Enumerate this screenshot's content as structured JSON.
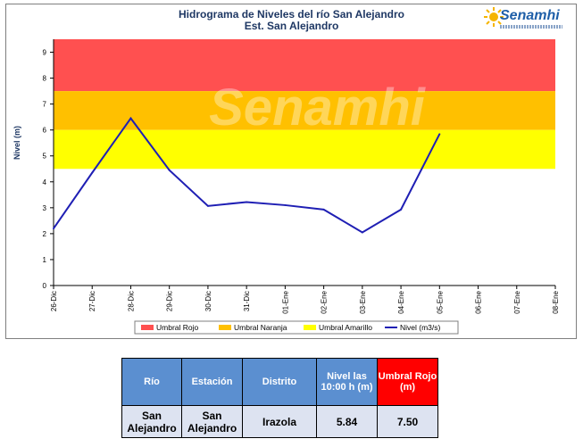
{
  "chart_data": {
    "type": "line",
    "title": "Hidrograma de Niveles del río San Alejandro",
    "subtitle": "Est. San Alejandro",
    "ylabel": "Nivel (m)",
    "xlabel": "",
    "ylim": [
      0,
      9.5
    ],
    "yticks": [
      0,
      1,
      2,
      3,
      4,
      5,
      6,
      7,
      8,
      9
    ],
    "categories": [
      "26-Dic",
      "27-Dic",
      "28-Dic",
      "29-Dic",
      "30-Dic",
      "31-Dic",
      "01-Ene",
      "02-Ene",
      "03-Ene",
      "04-Ene",
      "05-Ene",
      "06-Ene",
      "07-Ene",
      "08-Ene"
    ],
    "bands": [
      {
        "name": "Umbral Rojo",
        "from": 7.5,
        "to": 9.5,
        "color": "#ff5050"
      },
      {
        "name": "Umbral Naranja",
        "from": 6.0,
        "to": 7.5,
        "color": "#ffc000"
      },
      {
        "name": "Umbral Amarillo",
        "from": 4.5,
        "to": 6.0,
        "color": "#ffff00"
      }
    ],
    "series": [
      {
        "name": "Nivel (m3/s)",
        "color": "#1f1fb4",
        "values": [
          2.2,
          4.35,
          6.45,
          4.45,
          3.07,
          3.22,
          3.1,
          2.93,
          2.05,
          2.93,
          5.84,
          null,
          null,
          null
        ]
      }
    ],
    "legend_position": "bottom",
    "grid": false
  },
  "watermark": "Senamhi",
  "logo": {
    "text": "Senamhi"
  },
  "table": {
    "headers": [
      "Río",
      "Estación",
      "Distrito",
      "Nivel las 10:00 h (m)",
      "Umbral Rojo (m)"
    ],
    "row": [
      "San Alejandro",
      "San Alejandro",
      "Irazola",
      "5.84",
      "7.50"
    ]
  }
}
